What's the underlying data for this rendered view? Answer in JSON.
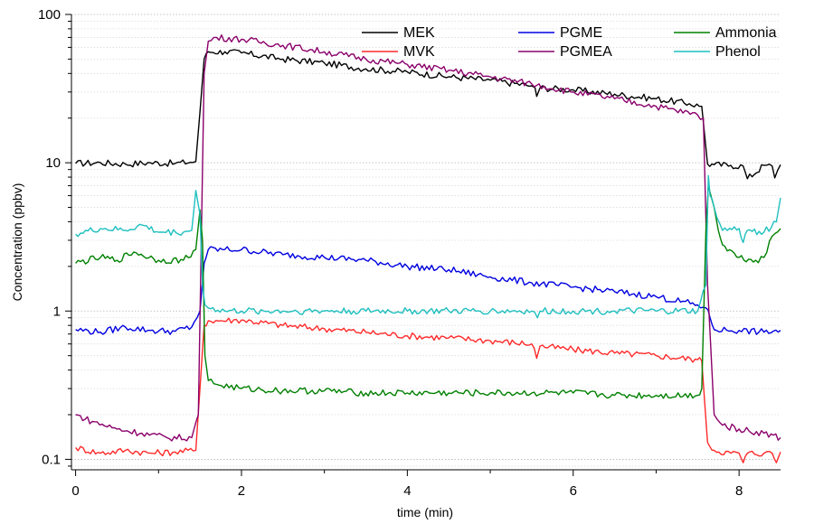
{
  "chart_data": {
    "type": "line",
    "xlabel": "time (min)",
    "ylabel": "Concentration (ppbv)",
    "xlim": [
      -0.05,
      8.5
    ],
    "ylim": [
      0.085,
      100
    ],
    "yscale": "log",
    "grid": "horizontal dotted",
    "legend_position": "top-right",
    "x_ticks": [
      0,
      2,
      4,
      6,
      8
    ],
    "x_tick_labels": [
      "0",
      "2",
      "4",
      "6",
      "8"
    ],
    "y_ticks": [
      0.1,
      1,
      10,
      100
    ],
    "y_tick_labels": [
      "0.1",
      "1",
      "10",
      "100"
    ],
    "series": [
      {
        "name": "MEK",
        "color": "#000000",
        "x": [
          0,
          0.3,
          0.6,
          0.9,
          1.2,
          1.45,
          1.5,
          1.55,
          1.6,
          1.8,
          2.0,
          2.5,
          3.0,
          3.5,
          4.0,
          4.5,
          5.0,
          5.5,
          5.54,
          5.56,
          5.6,
          6.0,
          6.5,
          7.0,
          7.4,
          7.55,
          7.62,
          7.7,
          7.9,
          8.05,
          8.1,
          8.3,
          8.4,
          8.43,
          8.5
        ],
        "y": [
          9.9,
          10.0,
          9.8,
          10.0,
          9.9,
          10.2,
          22,
          50,
          56,
          56,
          55,
          50,
          47,
          43,
          41,
          38,
          36,
          33,
          32,
          28,
          32,
          31,
          29,
          27,
          25,
          24,
          9.8,
          9.7,
          9.6,
          9.5,
          7.8,
          9.6,
          9.5,
          7.9,
          9.7
        ]
      },
      {
        "name": "MVK",
        "color": "#ff2a2a",
        "x": [
          0,
          0.3,
          0.6,
          0.9,
          1.2,
          1.45,
          1.5,
          1.55,
          1.6,
          2.0,
          2.5,
          3.0,
          3.5,
          4.0,
          4.5,
          5.0,
          5.5,
          5.53,
          5.56,
          5.6,
          6.0,
          6.5,
          7.0,
          7.5,
          7.55,
          7.62,
          7.7,
          7.9,
          8.0,
          8.05,
          8.1,
          8.3,
          8.4,
          8.45,
          8.5
        ],
        "y": [
          0.12,
          0.11,
          0.115,
          0.11,
          0.112,
          0.115,
          0.3,
          0.8,
          0.86,
          0.87,
          0.8,
          0.76,
          0.72,
          0.68,
          0.66,
          0.63,
          0.6,
          0.56,
          0.48,
          0.58,
          0.55,
          0.52,
          0.5,
          0.47,
          0.46,
          0.13,
          0.115,
          0.11,
          0.11,
          0.095,
          0.11,
          0.11,
          0.11,
          0.095,
          0.112
        ]
      },
      {
        "name": "PGME",
        "color": "#0000e0",
        "x": [
          0,
          0.3,
          0.6,
          0.9,
          1.2,
          1.4,
          1.5,
          1.55,
          1.6,
          1.8,
          2.0,
          2.5,
          3.0,
          3.5,
          4.0,
          4.5,
          5.0,
          5.5,
          6.0,
          6.5,
          7.0,
          7.5,
          7.6,
          7.65,
          7.7,
          8.0,
          8.3,
          8.5
        ],
        "y": [
          0.75,
          0.72,
          0.78,
          0.74,
          0.73,
          0.78,
          1.0,
          2.1,
          2.6,
          2.6,
          2.6,
          2.4,
          2.3,
          2.2,
          2.0,
          1.9,
          1.7,
          1.55,
          1.45,
          1.35,
          1.25,
          1.1,
          1.05,
          0.9,
          0.75,
          0.74,
          0.72,
          0.74
        ]
      },
      {
        "name": "PGMEA",
        "color": "#8b006b",
        "x": [
          0,
          0.2,
          0.5,
          0.8,
          1.1,
          1.4,
          1.48,
          1.55,
          1.6,
          1.7,
          2.0,
          2.5,
          3.0,
          3.5,
          4.0,
          4.5,
          5.0,
          5.5,
          6.0,
          6.5,
          7.0,
          7.5,
          7.57,
          7.62,
          7.7,
          7.8,
          8.0,
          8.3,
          8.5
        ],
        "y": [
          0.2,
          0.18,
          0.16,
          0.15,
          0.14,
          0.14,
          0.2,
          40,
          66,
          70,
          68,
          62,
          56,
          50,
          46,
          42,
          38,
          34,
          30,
          27,
          24,
          21,
          20,
          1.5,
          0.2,
          0.17,
          0.16,
          0.15,
          0.14
        ]
      },
      {
        "name": "Ammonia",
        "color": "#008000",
        "x": [
          0,
          0.3,
          0.5,
          0.7,
          1.0,
          1.3,
          1.45,
          1.5,
          1.53,
          1.56,
          1.6,
          1.7,
          2.0,
          2.5,
          3.0,
          3.5,
          4.0,
          4.5,
          5.0,
          5.5,
          6.0,
          6.5,
          7.0,
          7.5,
          7.55,
          7.6,
          7.63,
          7.7,
          7.75,
          7.8,
          8.0,
          8.2,
          8.3,
          8.4,
          8.5
        ],
        "y": [
          2.1,
          2.3,
          2.2,
          2.5,
          2.2,
          2.2,
          2.6,
          4.8,
          3.0,
          0.5,
          0.34,
          0.32,
          0.3,
          0.29,
          0.29,
          0.28,
          0.28,
          0.28,
          0.28,
          0.28,
          0.28,
          0.27,
          0.27,
          0.27,
          0.3,
          3.5,
          7.0,
          5.0,
          3.5,
          2.8,
          2.3,
          2.2,
          2.3,
          3.2,
          3.6
        ]
      },
      {
        "name": "Phenol",
        "color": "#1fbfbf",
        "x": [
          0,
          0.3,
          0.6,
          0.8,
          1.0,
          1.3,
          1.4,
          1.45,
          1.5,
          1.53,
          1.56,
          1.6,
          1.8,
          2.0,
          2.5,
          3.0,
          3.5,
          4.0,
          4.5,
          5.0,
          5.5,
          5.57,
          5.6,
          6.0,
          6.5,
          7.0,
          7.5,
          7.6,
          7.63,
          7.65,
          7.7,
          7.8,
          8.0,
          8.05,
          8.1,
          8.3,
          8.45,
          8.5
        ],
        "y": [
          3.3,
          3.6,
          3.5,
          3.8,
          3.4,
          3.4,
          3.5,
          6.5,
          4.5,
          1.5,
          1.1,
          1.05,
          1.0,
          1.0,
          1.0,
          1.0,
          1.0,
          1.0,
          1.0,
          1.0,
          1.0,
          0.9,
          1.0,
          1.0,
          1.0,
          1.0,
          1.0,
          1.5,
          8.2,
          6.0,
          5.0,
          3.5,
          3.6,
          2.9,
          3.5,
          3.4,
          4.0,
          5.8
        ]
      }
    ]
  }
}
